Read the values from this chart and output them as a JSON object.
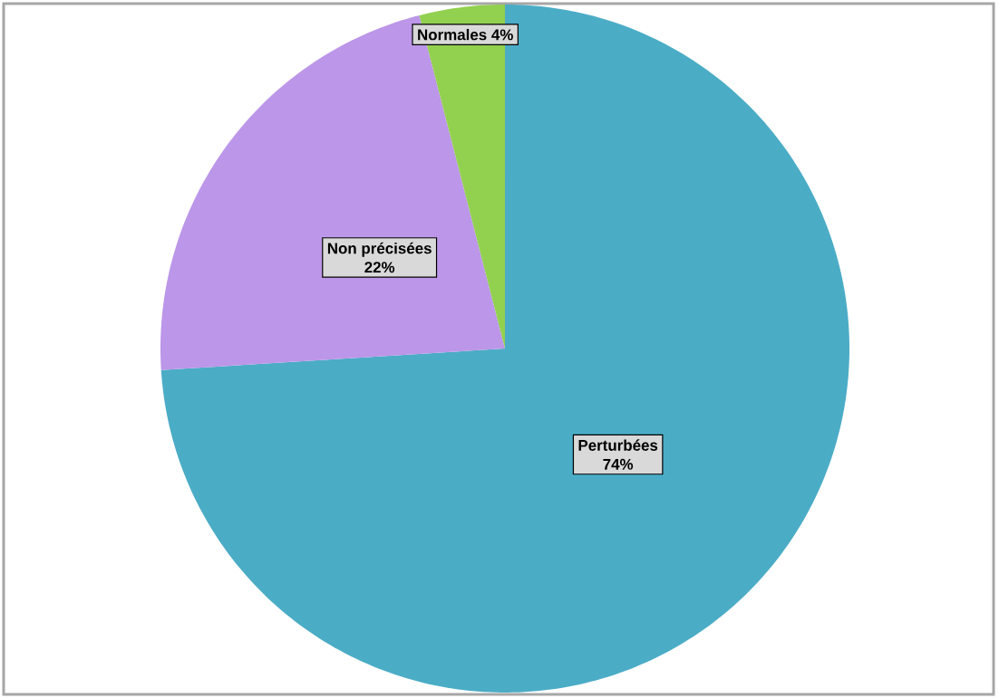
{
  "chart_data": {
    "type": "pie",
    "categories": [
      "Perturbées",
      "Non précisées",
      "Normales"
    ],
    "values": [
      74,
      22,
      4
    ],
    "colors": [
      "#4bacc6",
      "#bc96e8",
      "#92d050"
    ],
    "value_labels": [
      "74%",
      "22%",
      "4%"
    ],
    "data_labels": true
  }
}
